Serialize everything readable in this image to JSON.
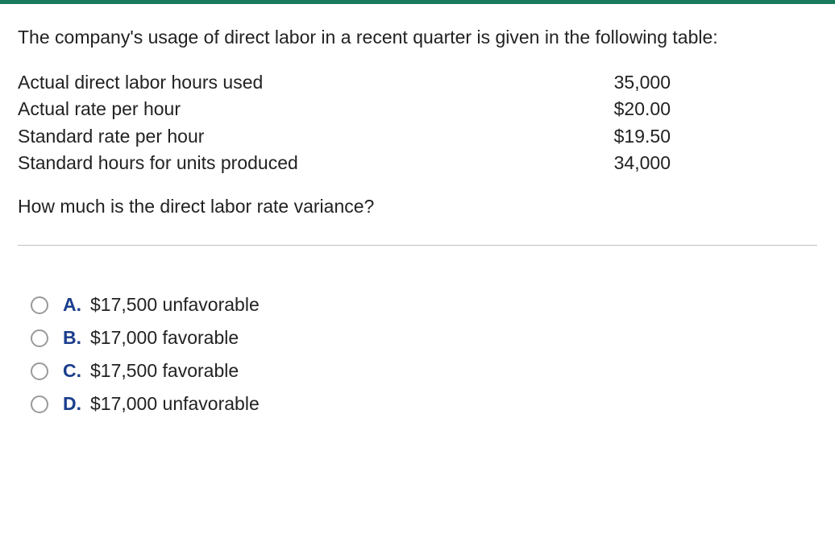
{
  "intro": "The company's usage of direct labor in a recent quarter is given in the following table:",
  "table": {
    "rows": [
      {
        "label": "Actual direct labor hours used",
        "value": "35,000"
      },
      {
        "label": "Actual rate per hour",
        "value": "$20.00"
      },
      {
        "label": "Standard rate per hour",
        "value": "$19.50"
      },
      {
        "label": "Standard hours for units produced",
        "value": "34,000"
      }
    ]
  },
  "question": "How much is the direct labor rate variance?",
  "options": [
    {
      "letter": "A.",
      "text": "$17,500 unfavorable"
    },
    {
      "letter": "B.",
      "text": "$17,000 favorable"
    },
    {
      "letter": "C.",
      "text": "$17,500 favorable"
    },
    {
      "letter": "D.",
      "text": "$17,000 unfavorable"
    }
  ],
  "colors": {
    "top_bar": "#1a7a5e",
    "option_letter": "#1a3e8c",
    "divider": "#bfbfbf",
    "radio_border": "#9a9a9a",
    "text": "#222222",
    "background": "#ffffff"
  },
  "typography": {
    "body_fontsize": 23,
    "font_family": "Arial"
  }
}
